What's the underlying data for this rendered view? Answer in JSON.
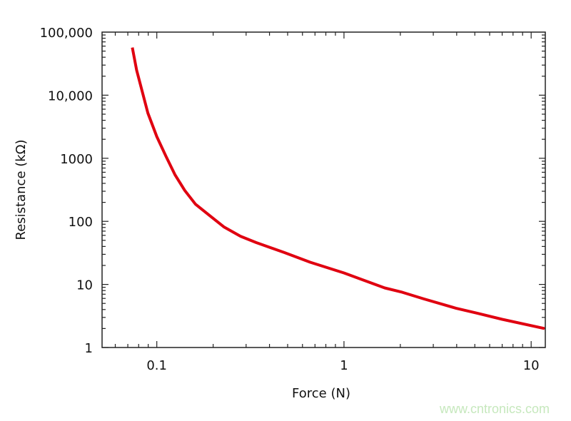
{
  "chart_data": {
    "type": "line",
    "title": "",
    "xlabel": "Force (N)",
    "ylabel": "Resistance (kΩ)",
    "x_scale": "log",
    "y_scale": "log",
    "xlim": [
      0.051,
      11.9
    ],
    "ylim": [
      1,
      100000
    ],
    "grid": false,
    "x_ticks": [
      {
        "value": 0.1,
        "label": "0.1"
      },
      {
        "value": 1,
        "label": "1"
      },
      {
        "value": 10,
        "label": "10"
      }
    ],
    "y_ticks": [
      {
        "value": 1,
        "label": "1"
      },
      {
        "value": 10,
        "label": "10"
      },
      {
        "value": 100,
        "label": "100"
      },
      {
        "value": 1000,
        "label": "1000"
      },
      {
        "value": 10000,
        "label": "10,000"
      },
      {
        "value": 100000,
        "label": "100,000"
      }
    ],
    "series": [
      {
        "color": "#e00010",
        "x": [
          0.074,
          0.078,
          0.0896,
          0.1,
          0.112,
          0.125,
          0.141,
          0.161,
          0.192,
          0.229,
          0.28,
          0.34,
          0.48,
          0.66,
          1.0,
          1.65,
          2.05,
          2.67,
          3.96,
          5.15,
          7.0,
          11.8
        ],
        "y": [
          57000,
          25000,
          5200,
          2200,
          1070,
          550,
          310,
          187,
          123,
          81,
          58,
          46,
          32,
          22.5,
          15.2,
          8.8,
          7.5,
          5.9,
          4.2,
          3.5,
          2.8,
          2.0
        ]
      }
    ]
  },
  "watermark": "www.cntronics.com"
}
